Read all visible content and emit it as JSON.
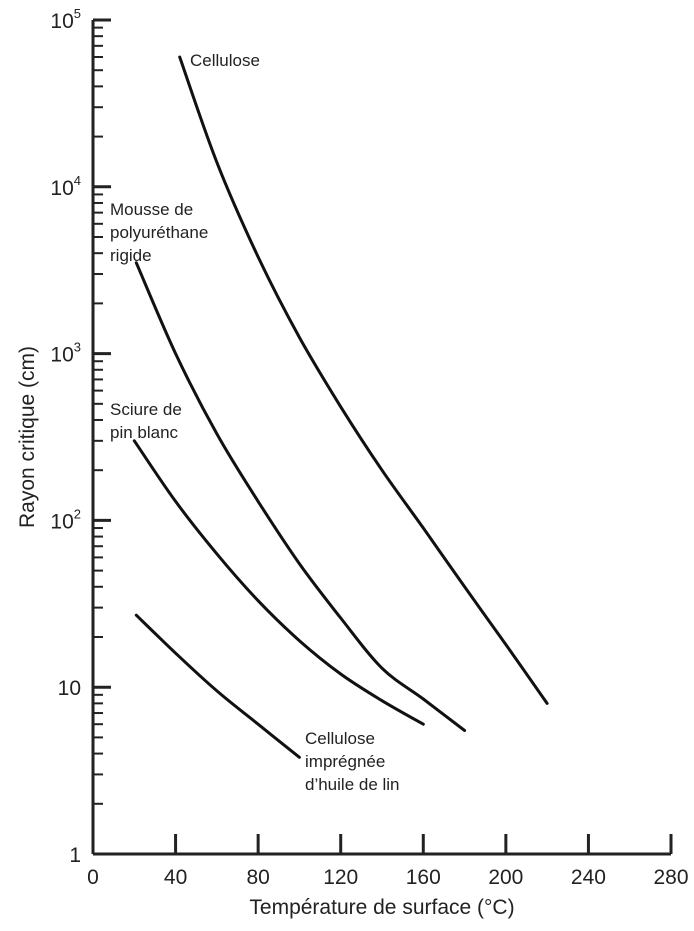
{
  "chart_data": {
    "type": "line",
    "title": "",
    "xlabel": "Température de surface (°C)",
    "ylabel": "Rayon critique (cm)",
    "xlim": [
      0,
      280
    ],
    "ylim": [
      1,
      100000
    ],
    "yscale": "log",
    "grid": false,
    "x_ticks": [
      0,
      40,
      80,
      120,
      160,
      200,
      240,
      280
    ],
    "x_tick_labels": [
      "0",
      "40",
      "80",
      "120",
      "160",
      "200",
      "240",
      "280"
    ],
    "y_ticks": [
      {
        "value": 1,
        "base": "1",
        "exp": ""
      },
      {
        "value": 10,
        "base": "10",
        "exp": ""
      },
      {
        "value": 100,
        "base": "10",
        "exp": "2"
      },
      {
        "value": 1000,
        "base": "10",
        "exp": "3"
      },
      {
        "value": 10000,
        "base": "10",
        "exp": "4"
      },
      {
        "value": 100000,
        "base": "10",
        "exp": "5"
      }
    ],
    "series": [
      {
        "name": "Cellulose",
        "label_lines": [
          "Cellulose"
        ],
        "points": [
          [
            42,
            60000
          ],
          [
            60,
            14000
          ],
          [
            80,
            3800
          ],
          [
            100,
            1250
          ],
          [
            120,
            480
          ],
          [
            140,
            200
          ],
          [
            160,
            90
          ],
          [
            180,
            40
          ],
          [
            200,
            18
          ],
          [
            220,
            8
          ]
        ]
      },
      {
        "name": "Mousse de polyuréthane rigide",
        "label_lines": [
          "Mousse de",
          "polyuréthane",
          "rigide"
        ],
        "points": [
          [
            21,
            3500
          ],
          [
            40,
            1000
          ],
          [
            60,
            330
          ],
          [
            80,
            130
          ],
          [
            100,
            55
          ],
          [
            120,
            26
          ],
          [
            140,
            13
          ],
          [
            160,
            8.5
          ],
          [
            180,
            5.5
          ]
        ]
      },
      {
        "name": "Sciure de pin blanc",
        "label_lines": [
          "Sciure de",
          "pin blanc"
        ],
        "points": [
          [
            20,
            300
          ],
          [
            40,
            130
          ],
          [
            60,
            63
          ],
          [
            80,
            33
          ],
          [
            100,
            19
          ],
          [
            120,
            12
          ],
          [
            140,
            8.3
          ],
          [
            160,
            6
          ]
        ]
      },
      {
        "name": "Cellulose imprégnée d'huile de lin",
        "label_lines": [
          "Cellulose",
          "imprégnée",
          "d’huile de lin"
        ],
        "points": [
          [
            21,
            27
          ],
          [
            40,
            16
          ],
          [
            60,
            9.5
          ],
          [
            80,
            6
          ],
          [
            100,
            3.8
          ]
        ]
      }
    ]
  }
}
